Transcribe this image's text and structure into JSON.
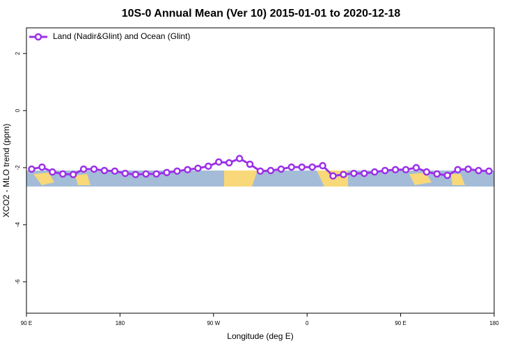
{
  "chart_data": {
    "type": "line",
    "title": "10S-0 Annual Mean (Ver 10)   2015-01-01 to 2020-12-18",
    "x_label": "Longitude (deg E)",
    "y_label": "XCO2 - MLO trend (ppm)",
    "x": [
      95,
      105,
      115,
      125,
      135,
      145,
      155,
      165,
      175,
      185,
      195,
      205,
      215,
      225,
      235,
      245,
      255,
      265,
      275,
      285,
      295,
      305,
      315,
      325,
      335,
      345,
      355,
      365,
      375,
      385,
      395,
      405,
      415,
      425,
      435,
      445,
      455,
      465,
      475,
      485,
      495,
      505,
      515,
      525,
      535
    ],
    "series": [
      {
        "name": "Land (Nadir&Glint) and Ocean (Glint)",
        "color": "#9b30e8",
        "values": [
          -2.05,
          -1.98,
          -2.15,
          -2.22,
          -2.24,
          -2.05,
          -2.05,
          -2.1,
          -2.12,
          -2.2,
          -2.24,
          -2.22,
          -2.22,
          -2.17,
          -2.12,
          -2.07,
          -2.02,
          -1.95,
          -1.8,
          -1.83,
          -1.68,
          -1.88,
          -2.12,
          -2.1,
          -2.05,
          -1.98,
          -1.98,
          -1.98,
          -1.93,
          -2.29,
          -2.24,
          -2.2,
          -2.2,
          -2.15,
          -2.1,
          -2.07,
          -2.07,
          -2.0,
          -2.15,
          -2.22,
          -2.27,
          -2.07,
          -2.05,
          -2.1,
          -2.12
        ]
      }
    ],
    "xlim": [
      90,
      540
    ],
    "xticks": [
      {
        "value": 90,
        "label": "90 E"
      },
      180,
      {
        "value": 270,
        "label": "90 W"
      },
      {
        "value": 360,
        "label": "0"
      },
      {
        "value": 450,
        "label": "90 E"
      },
      {
        "value": 540,
        "label": "180"
      }
    ],
    "ylim": [
      -7.1,
      2.9
    ],
    "yticks": [
      2,
      0,
      -2,
      -4,
      -6
    ],
    "legend": "top-left"
  }
}
